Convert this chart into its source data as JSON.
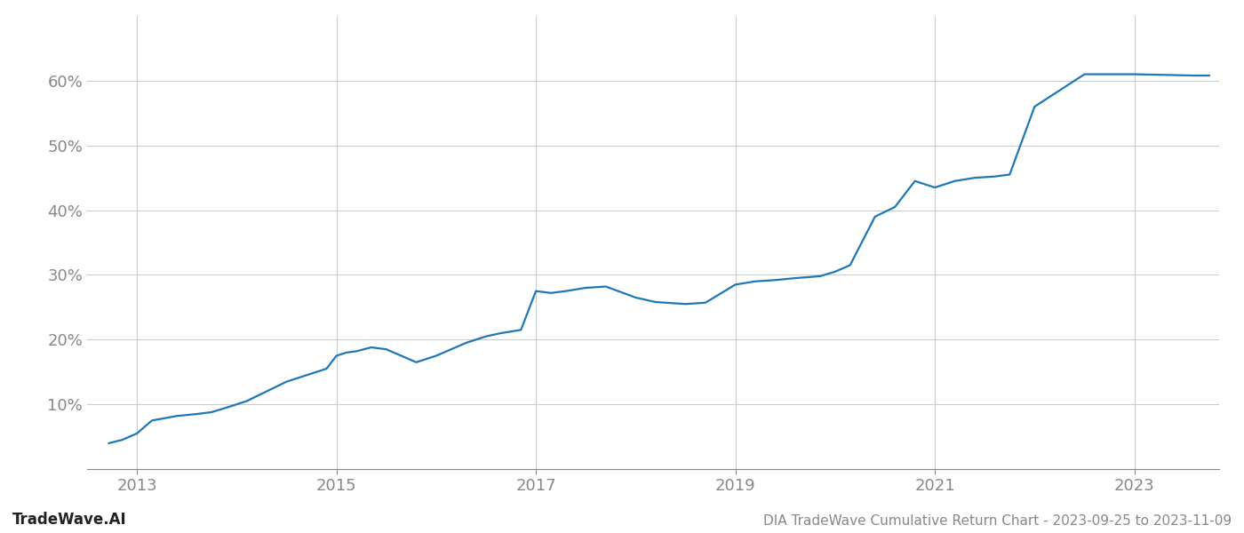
{
  "title": "DIA TradeWave Cumulative Return Chart - 2023-09-25 to 2023-11-09",
  "watermark": "TradeWave.AI",
  "line_color": "#1f77b4",
  "background_color": "#ffffff",
  "grid_color": "#cccccc",
  "x_years": [
    2013,
    2015,
    2017,
    2019,
    2021,
    2023
  ],
  "x_data": [
    2012.72,
    2012.85,
    2013.0,
    2013.15,
    2013.4,
    2013.6,
    2013.75,
    2013.9,
    2014.1,
    2014.3,
    2014.5,
    2014.7,
    2014.9,
    2015.0,
    2015.1,
    2015.2,
    2015.35,
    2015.5,
    2015.65,
    2015.8,
    2016.0,
    2016.15,
    2016.3,
    2016.5,
    2016.65,
    2016.85,
    2017.0,
    2017.15,
    2017.3,
    2017.5,
    2017.7,
    2018.0,
    2018.2,
    2018.5,
    2018.7,
    2019.0,
    2019.2,
    2019.4,
    2019.6,
    2019.85,
    2020.0,
    2020.15,
    2020.4,
    2020.6,
    2020.8,
    2021.0,
    2021.2,
    2021.4,
    2021.6,
    2021.75,
    2022.0,
    2022.5,
    2022.7,
    2023.0,
    2023.6,
    2023.75
  ],
  "y_data": [
    4.0,
    4.5,
    5.5,
    7.5,
    8.2,
    8.5,
    8.8,
    9.5,
    10.5,
    12.0,
    13.5,
    14.5,
    15.5,
    17.5,
    18.0,
    18.2,
    18.8,
    18.5,
    17.5,
    16.5,
    17.5,
    18.5,
    19.5,
    20.5,
    21.0,
    21.5,
    27.5,
    27.2,
    27.5,
    28.0,
    28.2,
    26.5,
    25.8,
    25.5,
    25.7,
    28.5,
    29.0,
    29.2,
    29.5,
    29.8,
    30.5,
    31.5,
    39.0,
    40.5,
    44.5,
    43.5,
    44.5,
    45.0,
    45.2,
    45.5,
    56.0,
    61.0,
    61.0,
    61.0,
    60.8,
    60.8
  ],
  "ylim": [
    0,
    70
  ],
  "yticks": [
    10,
    20,
    30,
    40,
    50,
    60
  ],
  "title_fontsize": 11,
  "watermark_fontsize": 12,
  "tick_fontsize": 13,
  "line_width": 1.6,
  "xlim_left": 2012.5,
  "xlim_right": 2023.85
}
